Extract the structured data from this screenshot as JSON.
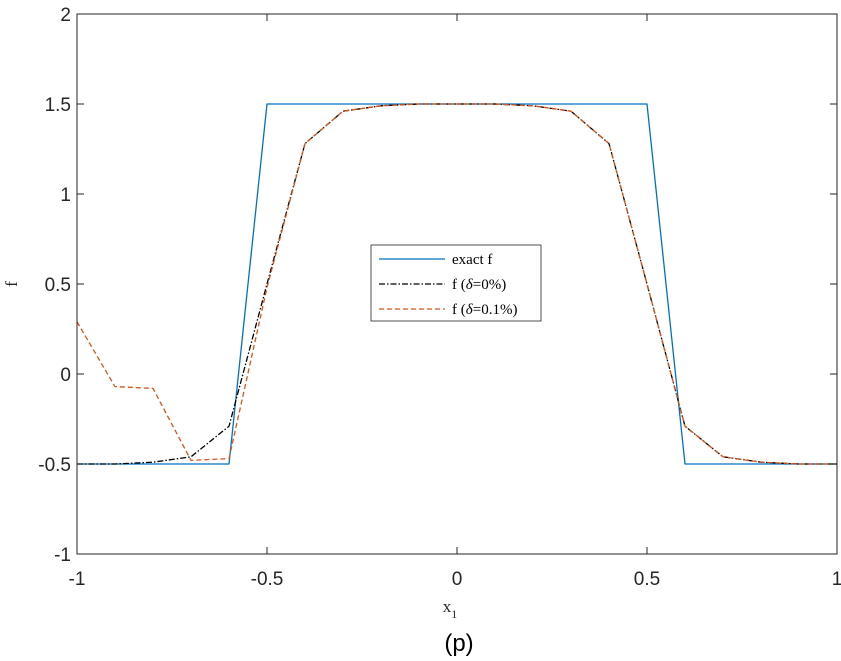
{
  "chart_data": {
    "type": "line",
    "caption": "(p)",
    "xlabel": "x",
    "xlabel_sub": "1",
    "ylabel": "f",
    "xlim": [
      -1,
      1
    ],
    "ylim": [
      -1,
      2
    ],
    "xticks": [
      -1,
      -0.5,
      0,
      0.5,
      1
    ],
    "xtick_labels": [
      "-1",
      "-0.5",
      "0",
      "0.5",
      "1"
    ],
    "yticks": [
      -1,
      -0.5,
      0,
      0.5,
      1,
      1.5,
      2
    ],
    "ytick_labels": [
      "-1",
      "-0.5",
      "0",
      "0.5",
      "1",
      "1.5",
      "2"
    ],
    "grid": false,
    "legend_position": "center",
    "series": [
      {
        "name": "exact f",
        "color": "#0072BD",
        "dash": "solid",
        "x": [
          -1,
          -0.6,
          -0.5,
          0.5,
          0.6,
          1
        ],
        "y": [
          -0.5,
          -0.5,
          1.5,
          1.5,
          -0.5,
          -0.5
        ]
      },
      {
        "name": "f (δ=0%)",
        "color": "#000000",
        "dash": "dashdot",
        "x": [
          -1,
          -0.9,
          -0.8,
          -0.7,
          -0.6,
          -0.5,
          -0.4,
          -0.3,
          -0.2,
          -0.1,
          0,
          0.1,
          0.2,
          0.3,
          0.4,
          0.5,
          0.6,
          0.7,
          0.8,
          0.9,
          1
        ],
        "y": [
          -0.5,
          -0.5,
          -0.49,
          -0.46,
          -0.29,
          0.5,
          1.28,
          1.46,
          1.49,
          1.5,
          1.5,
          1.5,
          1.49,
          1.46,
          1.28,
          0.5,
          -0.29,
          -0.46,
          -0.49,
          -0.5,
          -0.5
        ]
      },
      {
        "name": "f (δ=0.1%)",
        "color": "#D95319",
        "dash": "dashed",
        "x": [
          -1,
          -0.9,
          -0.8,
          -0.7,
          -0.6,
          -0.5,
          -0.4,
          -0.3,
          -0.2,
          -0.1,
          0,
          0.1,
          0.2,
          0.3,
          0.4,
          0.5,
          0.6,
          0.7,
          0.8,
          0.9,
          1
        ],
        "y": [
          0.29,
          -0.07,
          -0.08,
          -0.48,
          -0.47,
          0.48,
          1.28,
          1.46,
          1.49,
          1.5,
          1.5,
          1.5,
          1.49,
          1.46,
          1.28,
          0.5,
          -0.29,
          -0.46,
          -0.49,
          -0.5,
          -0.5
        ]
      }
    ],
    "legend": {
      "entries": [
        "exact f",
        "f (",
        "δ",
        "=0%)",
        "f (",
        "δ",
        "=0.1%)"
      ]
    }
  }
}
